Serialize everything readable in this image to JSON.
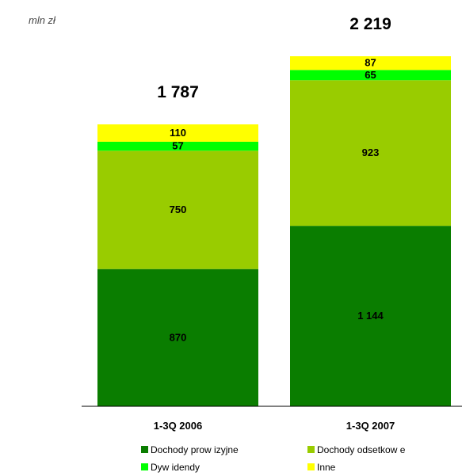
{
  "unit_label": "mln zł",
  "chart_data": {
    "type": "bar",
    "stacked": true,
    "categories": [
      "1-3Q 2006",
      "1-3Q 2007"
    ],
    "totals": [
      "1 787",
      "2 219"
    ],
    "series": [
      {
        "name": "Dochody prow izyjne",
        "color": "#0a7d00",
        "values": [
          870,
          1144
        ],
        "labels": [
          "870",
          "1 144"
        ]
      },
      {
        "name": "Dochody odsetkow e",
        "color": "#99cc00",
        "values": [
          750,
          923
        ],
        "labels": [
          "750",
          "923"
        ]
      },
      {
        "name": "Dyw idendy",
        "color": "#00ff00",
        "values": [
          57,
          65
        ],
        "labels": [
          "57",
          "65"
        ]
      },
      {
        "name": "Inne",
        "color": "#ffff00",
        "values": [
          110,
          87
        ],
        "labels": [
          "110",
          "87"
        ]
      }
    ],
    "ylim": [
      0,
      2500
    ],
    "grid": false,
    "legend_position": "bottom"
  }
}
